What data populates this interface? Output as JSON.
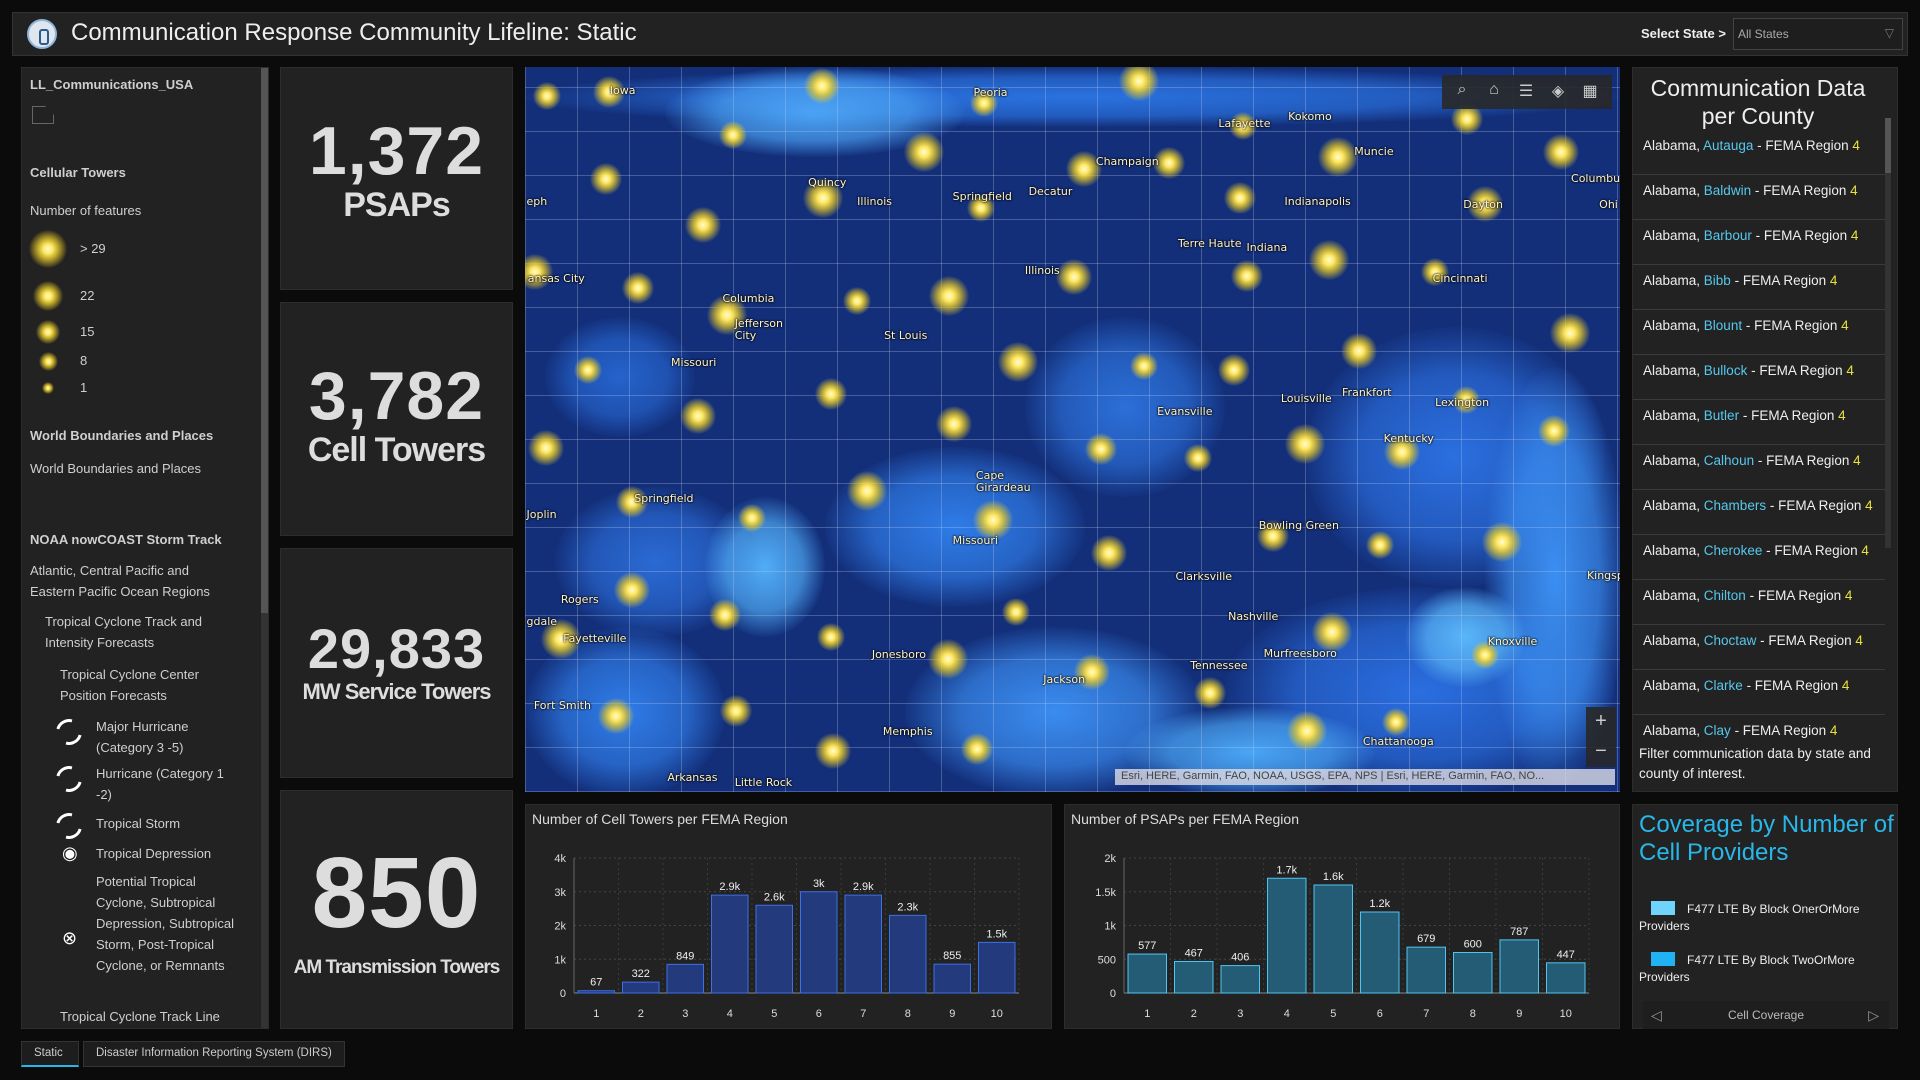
{
  "header": {
    "title": "Communication Response Community Lifeline: Static",
    "logo_icon": "radio-tower-icon",
    "state_label": "Select State >",
    "state_selected": "All States"
  },
  "legend_panel": {
    "layer_title": "LL_Communications_USA",
    "cellular_title": "Cellular Towers",
    "features_label": "Number of features",
    "size_classes": [
      "> 29",
      "22",
      "15",
      "8",
      "1"
    ],
    "world_title": "World Boundaries and Places",
    "world_item": "World Boundaries and Places",
    "storm_title": "NOAA nowCOAST Storm Track",
    "storm_sub": "Atlantic, Central Pacific and Eastern Pacific Ocean Regions",
    "track_forecasts": "Tropical Cyclone Track and Intensity Forecasts",
    "center_forecasts": "Tropical Cyclone Center Position Forecasts",
    "storm_classes": [
      "Major Hurricane (Category 3 -5)",
      "Hurricane (Category 1 -2)",
      "Tropical Storm",
      "Tropical Depression",
      "Potential Tropical Cyclone, Subtropical Depression, Subtropical Storm, Post-Tropical Cyclone, or Remnants"
    ],
    "track_line": "Tropical Cyclone Track Line"
  },
  "kpis": [
    {
      "value": "1,372",
      "label": "PSAPs"
    },
    {
      "value": "3,782",
      "label": "Cell Towers"
    },
    {
      "value": "29,833",
      "label": "MW Service Towers"
    },
    {
      "value": "850",
      "label": "AM Transmission Towers"
    }
  ],
  "map": {
    "labels": [
      "Iowa",
      "Peoria",
      "Quincy",
      "Illinois",
      "Springfield",
      "Decatur",
      "Champaign",
      "Lafayette",
      "Kokomo",
      "Muncie",
      "Indianapolis",
      "Dayton",
      "Columbu",
      "Ohi",
      "Terre Haute",
      "Indiana",
      "Cincinnati",
      "Illinois",
      "ansas City",
      "Columbia",
      "Jefferson City",
      "St Louis",
      "Missouri",
      "Louisville",
      "Frankfort",
      "Lexington",
      "Evansville",
      "Kentucky",
      "Cape Girardeau",
      "Springfield",
      "Joplin",
      "Missouri",
      "Bowling Green",
      "Clarksville",
      "Kingsp",
      "Rogers",
      "Fayetteville",
      "Nashville",
      "Knoxville",
      "Murfreesboro",
      "Tennessee",
      "Jonesboro",
      "Jackson",
      "Fort Smith",
      "Memphis",
      "Chattanooga",
      "Arkansas",
      "Little Rock",
      "gdale",
      "eph"
    ],
    "tools": [
      "search-icon",
      "home-icon",
      "legend-list-icon",
      "layers-icon",
      "basemap-gallery-icon"
    ],
    "zoom_in": "+",
    "zoom_out": "−",
    "attribution": "Esri, HERE, Garmin, FAO, NOAA, USGS, EPA, NPS | Esri, HERE, Garmin, FAO, NO..."
  },
  "chart_data": [
    {
      "type": "bar",
      "title": "Number of Cell Towers per FEMA Region",
      "categories": [
        "1",
        "2",
        "3",
        "4",
        "5",
        "6",
        "7",
        "8",
        "9",
        "10"
      ],
      "values": [
        67,
        322,
        849,
        2900,
        2600,
        3000,
        2900,
        2300,
        855,
        1500
      ],
      "data_labels": [
        "67",
        "322",
        "849",
        "2.9k",
        "2.6k",
        "3k",
        "2.9k",
        "2.3k",
        "855",
        "1.5k"
      ],
      "yticks": [
        "0",
        "1k",
        "2k",
        "3k",
        "4k"
      ],
      "ylim": [
        0,
        4000
      ],
      "grid": true,
      "colors": {
        "fill": "#233a7c",
        "stroke": "#3d6fe6"
      }
    },
    {
      "type": "bar",
      "title": "Number of PSAPs per FEMA Region",
      "categories": [
        "1",
        "2",
        "3",
        "4",
        "5",
        "6",
        "7",
        "8",
        "9",
        "10"
      ],
      "values": [
        577,
        467,
        406,
        1700,
        1600,
        1200,
        679,
        600,
        787,
        447
      ],
      "data_labels": [
        "577",
        "467",
        "406",
        "1.7k",
        "1.6k",
        "1.2k",
        "679",
        "600",
        "787",
        "447"
      ],
      "yticks": [
        "0",
        "500",
        "1k",
        "1.5k",
        "2k"
      ],
      "ylim": [
        0,
        2000
      ],
      "grid": true,
      "colors": {
        "fill": "#245c76",
        "stroke": "#4fc6f0"
      }
    }
  ],
  "county_panel": {
    "title": "Communication Data per County",
    "items": [
      {
        "state": "Alabama, ",
        "county": "Autauga",
        "mid": " - FEMA Region ",
        "region": "4"
      },
      {
        "state": "Alabama, ",
        "county": "Baldwin",
        "mid": " - FEMA Region ",
        "region": "4"
      },
      {
        "state": "Alabama, ",
        "county": "Barbour",
        "mid": " - FEMA Region ",
        "region": "4"
      },
      {
        "state": "Alabama, ",
        "county": "Bibb",
        "mid": " - FEMA Region ",
        "region": "4"
      },
      {
        "state": "Alabama, ",
        "county": "Blount",
        "mid": " - FEMA Region ",
        "region": "4"
      },
      {
        "state": "Alabama, ",
        "county": "Bullock",
        "mid": " - FEMA Region ",
        "region": "4"
      },
      {
        "state": "Alabama, ",
        "county": "Butler",
        "mid": " - FEMA Region ",
        "region": "4"
      },
      {
        "state": "Alabama, ",
        "county": "Calhoun",
        "mid": " - FEMA Region ",
        "region": "4"
      },
      {
        "state": "Alabama, ",
        "county": "Chambers",
        "mid": " - FEMA Region ",
        "region": "4"
      },
      {
        "state": "Alabama, ",
        "county": "Cherokee",
        "mid": " - FEMA Region ",
        "region": "4"
      },
      {
        "state": "Alabama, ",
        "county": "Chilton",
        "mid": " - FEMA Region ",
        "region": "4"
      },
      {
        "state": "Alabama, ",
        "county": "Choctaw",
        "mid": " - FEMA Region ",
        "region": "4"
      },
      {
        "state": "Alabama, ",
        "county": "Clarke",
        "mid": " - FEMA Region ",
        "region": "4"
      },
      {
        "state": "Alabama, ",
        "county": "Clay",
        "mid": " - FEMA Region ",
        "region": "4"
      }
    ],
    "footer": "Filter communication data by state and county of interest."
  },
  "coverage": {
    "title": "Coverage by Number of Cell Providers",
    "items": [
      {
        "label": "F477 LTE By Block OnerOrMore Providers",
        "color": "#6fd3fb"
      },
      {
        "label": "F477 LTE By Block TwoOrMore Providers",
        "color": "#21b2f4"
      }
    ],
    "nav_label": "Cell Coverage"
  },
  "tabs": [
    {
      "label": "Static",
      "active": true
    },
    {
      "label": "Disaster Information Reporting System (DIRS)",
      "active": false
    }
  ]
}
